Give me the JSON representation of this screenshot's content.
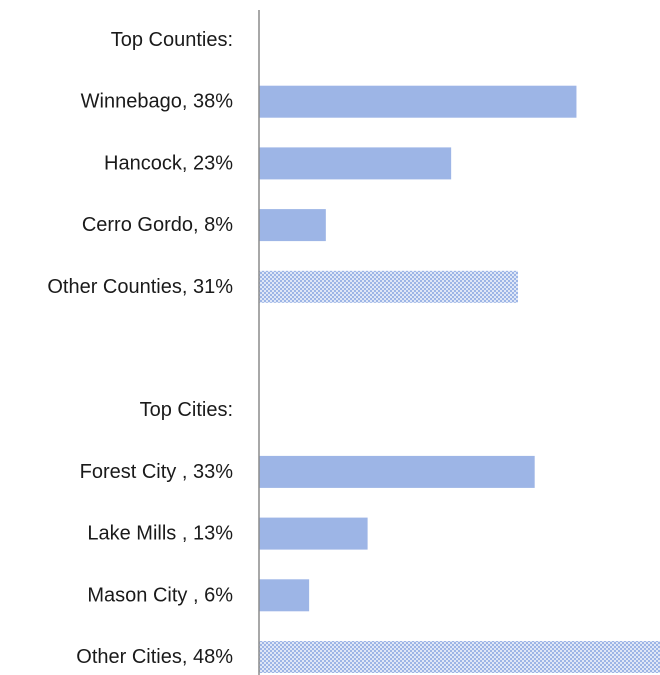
{
  "chart_data": {
    "type": "bar",
    "orientation": "horizontal",
    "title": "",
    "xlabel": "",
    "ylabel": "",
    "xlim": [
      0,
      48
    ],
    "grid": false,
    "legend": "none",
    "bar_color": "#9db5e6",
    "categories": [
      "Top Counties:",
      "Winnebago, 38%",
      "Hancock, 23%",
      "Cerro Gordo, 8%",
      "Other Counties, 31%",
      "",
      "Top Cities:",
      "Forest City , 33%",
      "Lake Mills , 13%",
      "Mason City , 6%",
      "Other Cities, 48%"
    ],
    "values": [
      null,
      38,
      23,
      8,
      31,
      null,
      null,
      33,
      13,
      6,
      48
    ],
    "patterned": [
      false,
      false,
      false,
      false,
      true,
      false,
      false,
      false,
      false,
      false,
      true
    ]
  }
}
